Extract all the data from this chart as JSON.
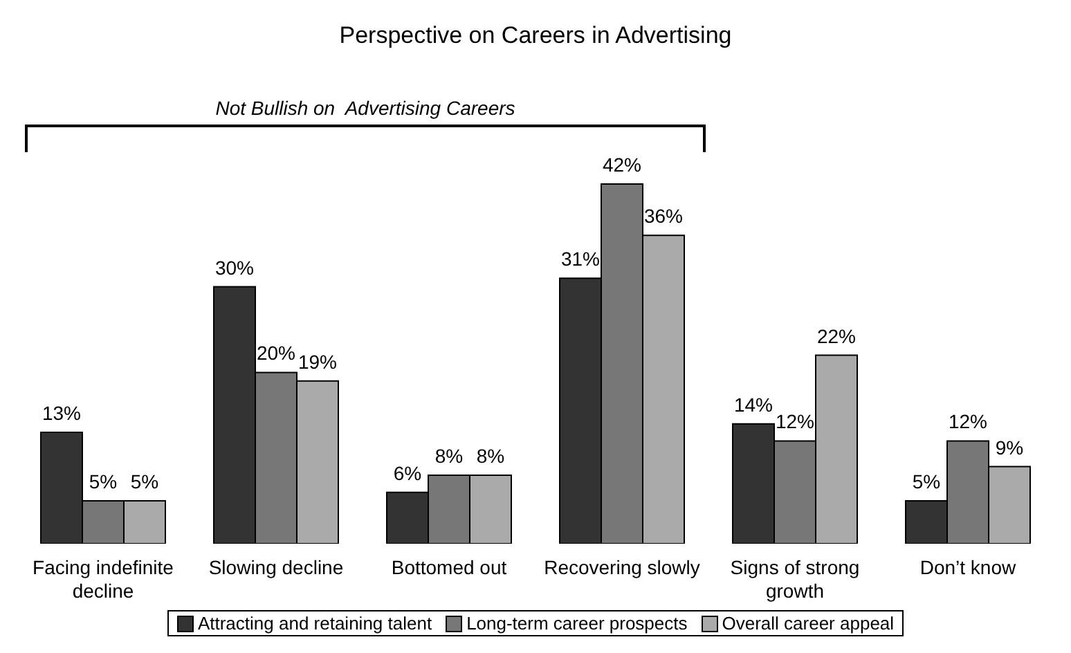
{
  "chart_data": {
    "type": "bar",
    "title": "Perspective on Careers in Advertising",
    "categories": [
      "Facing indefinite decline",
      "Slowing decline",
      "Bottomed out",
      "Recovering slowly",
      "Signs of strong growth",
      "Don’t know"
    ],
    "series": [
      {
        "name": "Attracting and retaining talent",
        "color": "#333333",
        "values": [
          13,
          30,
          6,
          31,
          14,
          5
        ],
        "value_labels": [
          "13%",
          "30%",
          "6%",
          "31%",
          "14%",
          "5%"
        ]
      },
      {
        "name": "Long-term career prospects",
        "color": "#777777",
        "values": [
          5,
          20,
          8,
          42,
          12,
          12
        ],
        "value_labels": [
          "5%",
          "20%",
          "8%",
          "42%",
          "12%",
          "12%"
        ]
      },
      {
        "name": "Overall career appeal",
        "color": "#aaaaaa",
        "values": [
          5,
          19,
          8,
          36,
          22,
          9
        ],
        "value_labels": [
          "5%",
          "19%",
          "8%",
          "36%",
          "22%",
          "9%"
        ]
      }
    ],
    "annotations": [
      "Not Bullish on  Advertising Careers"
    ],
    "legend": "bottom"
  }
}
